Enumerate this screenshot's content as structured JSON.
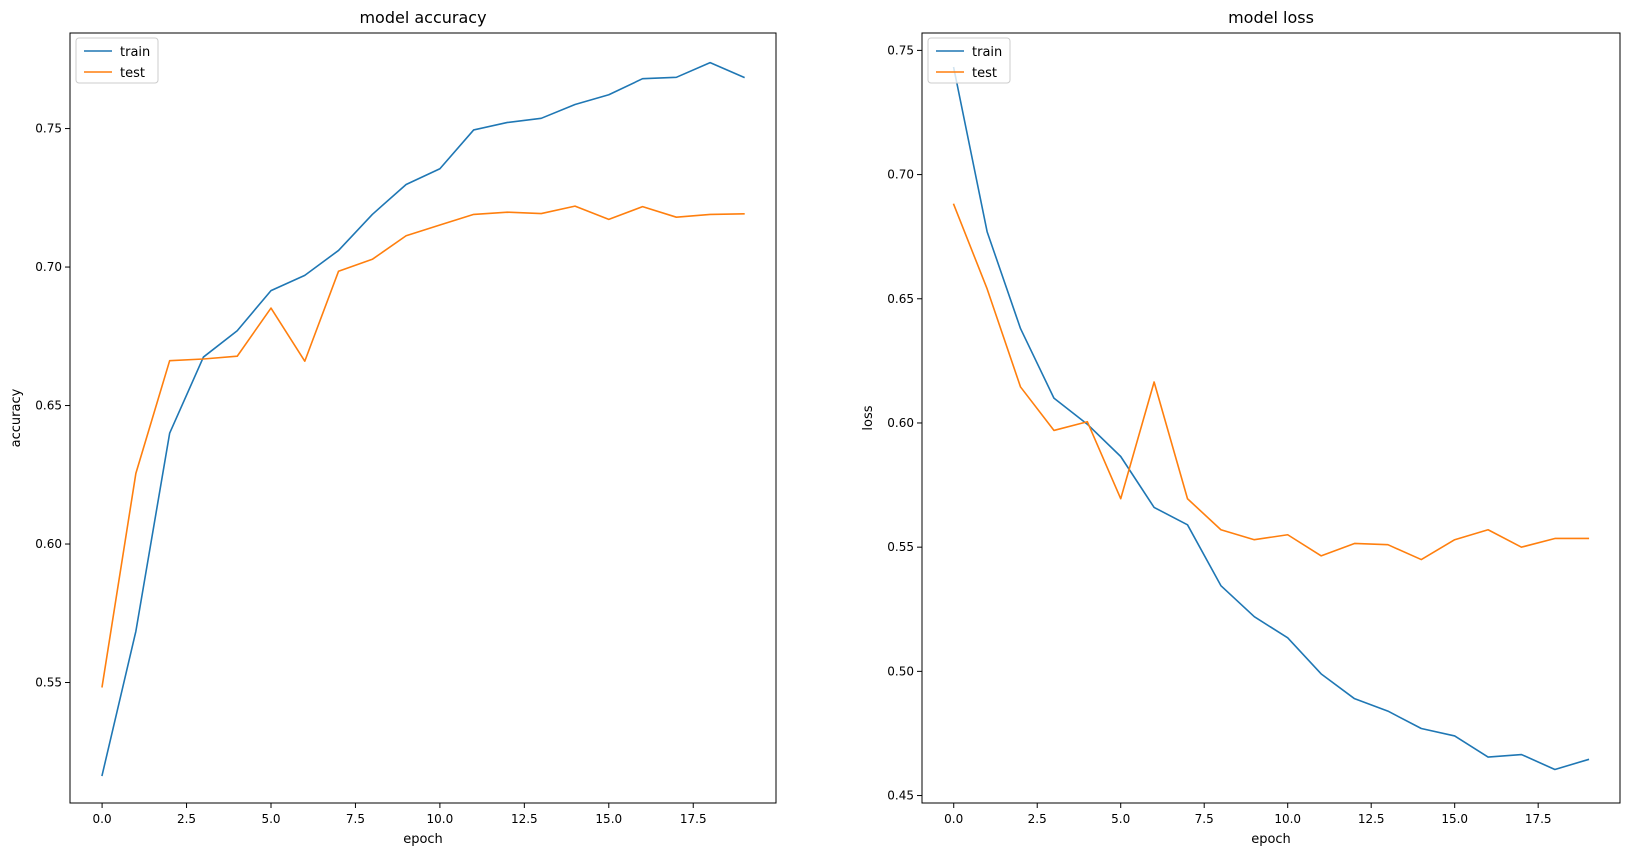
{
  "colors": {
    "train": "#1f77b4",
    "test": "#ff7f0e",
    "axes": "#000000",
    "legend_border": "#cccccc"
  },
  "chart_data": [
    {
      "type": "line",
      "title": "model accuracy",
      "xlabel": "epoch",
      "ylabel": "accuracy",
      "xlim": [
        -0.95,
        19.95
      ],
      "ylim": [
        0.5065,
        0.7845
      ],
      "xticks": [
        0.0,
        2.5,
        5.0,
        7.5,
        10.0,
        12.5,
        15.0,
        17.5
      ],
      "xtick_labels": [
        "0.0",
        "2.5",
        "5.0",
        "7.5",
        "10.0",
        "12.5",
        "15.0",
        "17.5"
      ],
      "yticks": [
        0.55,
        0.6,
        0.65,
        0.7,
        0.75
      ],
      "ytick_labels": [
        "0.55",
        "0.60",
        "0.65",
        "0.70",
        "0.75"
      ],
      "legend": "upper-left",
      "grid": false,
      "x": [
        0,
        1,
        2,
        3,
        4,
        5,
        6,
        7,
        8,
        9,
        10,
        11,
        12,
        13,
        14,
        15,
        16,
        17,
        18,
        19
      ],
      "series": [
        {
          "name": "train",
          "color": "#1f77b4",
          "values": [
            0.5165,
            0.5685,
            0.64,
            0.6675,
            0.677,
            0.6915,
            0.697,
            0.706,
            0.719,
            0.7298,
            0.7355,
            0.7495,
            0.7522,
            0.7537,
            0.7587,
            0.7622,
            0.768,
            0.7685,
            0.7738,
            0.7685
          ]
        },
        {
          "name": "test",
          "color": "#ff7f0e",
          "values": [
            0.5485,
            0.6255,
            0.6662,
            0.6668,
            0.6678,
            0.6852,
            0.666,
            0.6985,
            0.7028,
            0.7113,
            0.7152,
            0.719,
            0.7198,
            0.7193,
            0.722,
            0.7172,
            0.7218,
            0.718,
            0.719,
            0.7192
          ]
        }
      ]
    },
    {
      "type": "line",
      "title": "model loss",
      "xlabel": "epoch",
      "ylabel": "loss",
      "xlim": [
        -0.95,
        19.95
      ],
      "ylim": [
        0.447,
        0.757
      ],
      "xticks": [
        0.0,
        2.5,
        5.0,
        7.5,
        10.0,
        12.5,
        15.0,
        17.5
      ],
      "xtick_labels": [
        "0.0",
        "2.5",
        "5.0",
        "7.5",
        "10.0",
        "12.5",
        "15.0",
        "17.5"
      ],
      "yticks": [
        0.45,
        0.5,
        0.55,
        0.6,
        0.65,
        0.7,
        0.75
      ],
      "ytick_labels": [
        "0.45",
        "0.50",
        "0.55",
        "0.60",
        "0.65",
        "0.70",
        "0.75"
      ],
      "legend": "upper-left",
      "grid": false,
      "x": [
        0,
        1,
        2,
        3,
        4,
        5,
        6,
        7,
        8,
        9,
        10,
        11,
        12,
        13,
        14,
        15,
        16,
        17,
        18,
        19
      ],
      "series": [
        {
          "name": "train",
          "color": "#1f77b4",
          "values": [
            0.743,
            0.677,
            0.638,
            0.61,
            0.5995,
            0.5865,
            0.566,
            0.559,
            0.5345,
            0.522,
            0.5135,
            0.499,
            0.489,
            0.484,
            0.477,
            0.474,
            0.4655,
            0.4665,
            0.4605,
            0.4645
          ]
        },
        {
          "name": "test",
          "color": "#ff7f0e",
          "values": [
            0.688,
            0.654,
            0.6145,
            0.597,
            0.6005,
            0.5695,
            0.6165,
            0.5695,
            0.557,
            0.553,
            0.555,
            0.5465,
            0.5515,
            0.551,
            0.545,
            0.553,
            0.557,
            0.55,
            0.5535,
            0.5535
          ]
        }
      ]
    }
  ]
}
